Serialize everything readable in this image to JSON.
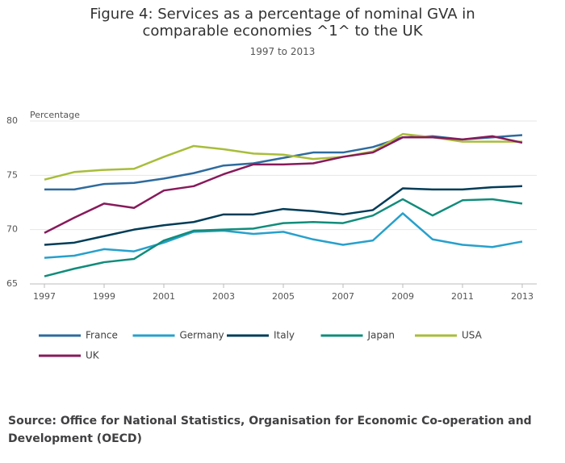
{
  "chart_data": {
    "type": "line",
    "title": "Figure 4: Services as a percentage of nominal GVA in comparable economies ^1^ to the UK",
    "subtitle": "1997 to 2013",
    "y_label": "Percentage",
    "source": "Source: Office for National Statistics, Organisation for Economic Co-operation and Development (OECD)",
    "x": [
      1997,
      1998,
      1999,
      2000,
      2001,
      2002,
      2003,
      2004,
      2005,
      2006,
      2007,
      2008,
      2009,
      2010,
      2011,
      2012,
      2013
    ],
    "xlim": [
      1997,
      2013
    ],
    "xticks": [
      1997,
      1999,
      2001,
      2003,
      2005,
      2007,
      2009,
      2011,
      2013
    ],
    "ylim": [
      65,
      80
    ],
    "yticks": [
      65,
      70,
      75,
      80
    ],
    "grid": true,
    "series": [
      {
        "name": "France",
        "color": "#2e6b9e",
        "values": [
          73.7,
          73.7,
          74.2,
          74.3,
          74.7,
          75.2,
          75.9,
          76.1,
          76.6,
          77.1,
          77.1,
          77.6,
          78.5,
          78.6,
          78.3,
          78.5,
          78.7
        ]
      },
      {
        "name": "Germany",
        "color": "#27a0cc",
        "values": [
          67.4,
          67.6,
          68.2,
          68.0,
          68.8,
          69.8,
          69.9,
          69.6,
          69.8,
          69.1,
          68.6,
          69.0,
          71.5,
          69.1,
          68.6,
          68.4,
          68.9
        ]
      },
      {
        "name": "Italy",
        "color": "#003c57",
        "values": [
          68.6,
          68.8,
          69.4,
          70.0,
          70.4,
          70.7,
          71.4,
          71.4,
          71.9,
          71.7,
          71.4,
          71.8,
          73.8,
          73.7,
          73.7,
          73.9,
          74.0
        ]
      },
      {
        "name": "Japan",
        "color": "#118c7b",
        "values": [
          65.7,
          66.4,
          67.0,
          67.3,
          69.0,
          69.9,
          70.0,
          70.1,
          70.6,
          70.7,
          70.6,
          71.3,
          72.8,
          71.3,
          72.7,
          72.8,
          72.4
        ]
      },
      {
        "name": "USA",
        "color": "#a8bd3a",
        "values": [
          74.6,
          75.3,
          75.5,
          75.6,
          76.7,
          77.7,
          77.4,
          77.0,
          76.9,
          76.5,
          76.7,
          77.2,
          78.8,
          78.5,
          78.1,
          78.1,
          78.1
        ]
      },
      {
        "name": "UK",
        "color": "#871a5b",
        "values": [
          69.7,
          71.1,
          72.4,
          72.0,
          73.6,
          74.0,
          75.1,
          76.0,
          76.0,
          76.1,
          76.7,
          77.1,
          78.5,
          78.5,
          78.3,
          78.6,
          78.0
        ]
      }
    ]
  }
}
